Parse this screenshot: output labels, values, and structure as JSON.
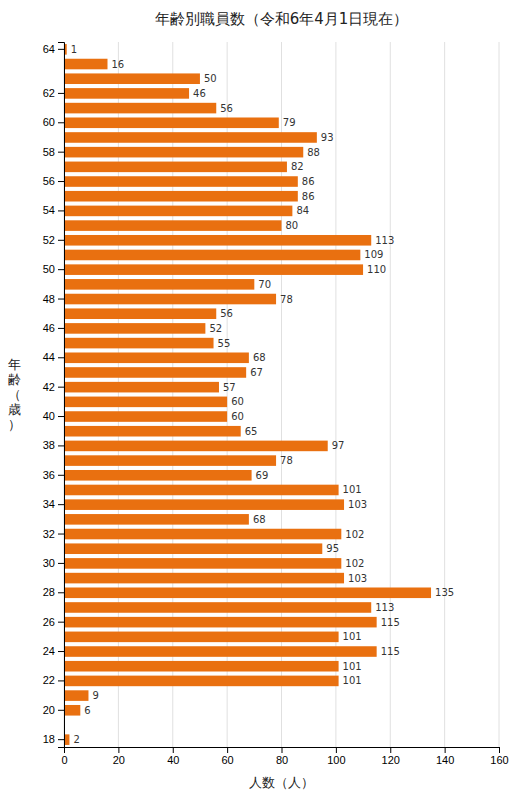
{
  "chart_data": {
    "type": "bar",
    "orientation": "horizontal",
    "title": "年齢別職員数（令和6年4月1日現在）",
    "x_label": "人数（人）",
    "y_label": "年\n齢\n（\n歳\n）",
    "categories": [
      "64",
      null,
      null,
      "62",
      null,
      "60",
      null,
      "58",
      null,
      "56",
      null,
      "54",
      null,
      "52",
      null,
      "50",
      null,
      "48",
      null,
      "46",
      null,
      "44",
      null,
      "42",
      null,
      "40",
      null,
      "38",
      null,
      "36",
      null,
      "34",
      null,
      "32",
      null,
      "30",
      null,
      "28",
      null,
      "26",
      null,
      "24",
      null,
      "22",
      null,
      "20",
      null,
      "18"
    ],
    "values": [
      1,
      16,
      50,
      46,
      56,
      79,
      93,
      88,
      82,
      86,
      86,
      84,
      80,
      113,
      109,
      110,
      70,
      78,
      56,
      52,
      55,
      68,
      67,
      57,
      60,
      60,
      65,
      97,
      78,
      69,
      101,
      103,
      68,
      102,
      95,
      102,
      103,
      135,
      113,
      115,
      101,
      115,
      101,
      101,
      9,
      6,
      0,
      2
    ],
    "color": "#E97010",
    "xlim": [
      0,
      160
    ],
    "xticks": [
      0,
      20,
      40,
      60,
      80,
      100,
      120,
      140,
      160
    ],
    "grid": true,
    "data_labels": true
  }
}
